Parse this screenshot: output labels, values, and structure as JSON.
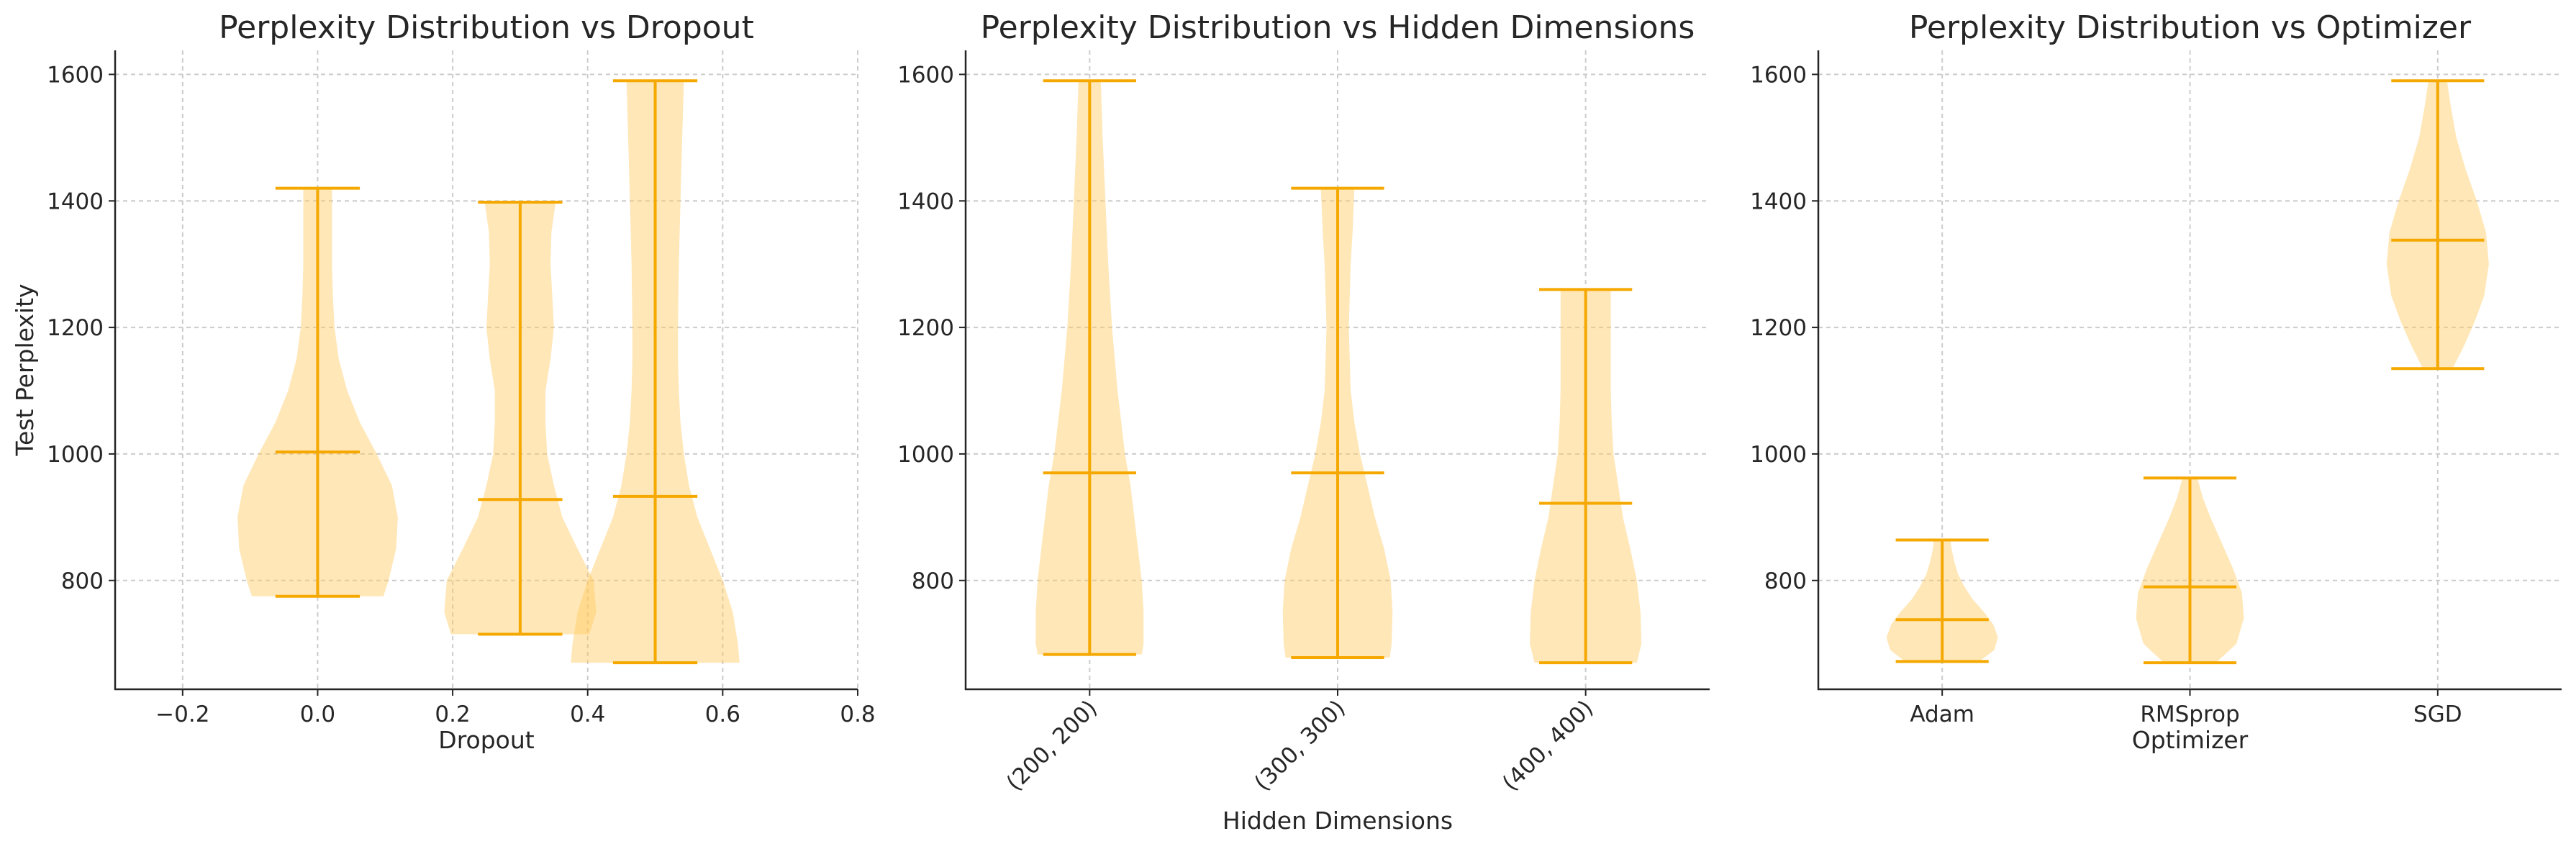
{
  "colors": {
    "body": "#FFD27A",
    "lines": "#F5A800",
    "grid": "#cccccc",
    "text": "#262626"
  },
  "chart_data": [
    {
      "type": "violin",
      "title": "Perplexity Distribution vs Dropout",
      "xlabel": "Dropout",
      "ylabel": "Test Perplexity",
      "x_axis": "numeric",
      "xlim": [
        -0.3,
        0.8
      ],
      "xticks": [
        -0.2,
        0.0,
        0.2,
        0.4,
        0.6,
        0.8
      ],
      "xtick_labels": [
        "−0.2",
        "0.0",
        "0.2",
        "0.4",
        "0.6",
        "0.8"
      ],
      "ylim": [
        628,
        1638
      ],
      "yticks": [
        800,
        1000,
        1200,
        1400,
        1600
      ],
      "grid": true,
      "violins": [
        {
          "position": 0.0,
          "width": 0.25,
          "min": 775,
          "max": 1420,
          "median": 1003,
          "profile": [
            [
              775,
              0.78
            ],
            [
              800,
              0.84
            ],
            [
              850,
              0.93
            ],
            [
              900,
              0.95
            ],
            [
              950,
              0.88
            ],
            [
              1000,
              0.7
            ],
            [
              1050,
              0.5
            ],
            [
              1100,
              0.35
            ],
            [
              1150,
              0.25
            ],
            [
              1200,
              0.2
            ],
            [
              1250,
              0.18
            ],
            [
              1300,
              0.17
            ],
            [
              1350,
              0.17
            ],
            [
              1400,
              0.17
            ],
            [
              1420,
              0.17
            ]
          ]
        },
        {
          "position": 0.3,
          "width": 0.25,
          "min": 715,
          "max": 1398,
          "median": 928,
          "profile": [
            [
              715,
              0.82
            ],
            [
              750,
              0.9
            ],
            [
              800,
              0.87
            ],
            [
              850,
              0.68
            ],
            [
              900,
              0.5
            ],
            [
              950,
              0.4
            ],
            [
              1000,
              0.32
            ],
            [
              1050,
              0.3
            ],
            [
              1100,
              0.3
            ],
            [
              1150,
              0.36
            ],
            [
              1200,
              0.4
            ],
            [
              1250,
              0.38
            ],
            [
              1300,
              0.36
            ],
            [
              1350,
              0.37
            ],
            [
              1398,
              0.42
            ]
          ]
        },
        {
          "position": 0.5,
          "width": 0.25,
          "min": 670,
          "max": 1590,
          "median": 933,
          "profile": [
            [
              670,
              1.0
            ],
            [
              700,
              0.98
            ],
            [
              750,
              0.92
            ],
            [
              800,
              0.8
            ],
            [
              850,
              0.65
            ],
            [
              900,
              0.5
            ],
            [
              950,
              0.4
            ],
            [
              1000,
              0.34
            ],
            [
              1050,
              0.3
            ],
            [
              1100,
              0.28
            ],
            [
              1150,
              0.27
            ],
            [
              1200,
              0.27
            ],
            [
              1300,
              0.28
            ],
            [
              1400,
              0.3
            ],
            [
              1500,
              0.32
            ],
            [
              1590,
              0.34
            ]
          ]
        }
      ]
    },
    {
      "type": "violin",
      "title": "Perplexity Distribution vs Hidden Dimensions",
      "xlabel": "Hidden Dimensions",
      "ylabel": "",
      "x_axis": "categorical",
      "categories": [
        "(200, 200)",
        "(300, 300)",
        "(400, 400)"
      ],
      "xtick_rotation": 45,
      "ylim": [
        628,
        1638
      ],
      "yticks": [
        800,
        1000,
        1200,
        1400,
        1600
      ],
      "grid": true,
      "violins": [
        {
          "category": "(200, 200)",
          "min": 683,
          "max": 1590,
          "median": 970,
          "profile": [
            [
              683,
              0.56
            ],
            [
              700,
              0.58
            ],
            [
              750,
              0.58
            ],
            [
              800,
              0.56
            ],
            [
              850,
              0.52
            ],
            [
              900,
              0.48
            ],
            [
              950,
              0.44
            ],
            [
              1000,
              0.38
            ],
            [
              1100,
              0.3
            ],
            [
              1200,
              0.24
            ],
            [
              1300,
              0.2
            ],
            [
              1400,
              0.17
            ],
            [
              1500,
              0.14
            ],
            [
              1590,
              0.12
            ]
          ]
        },
        {
          "category": "(300, 300)",
          "min": 678,
          "max": 1420,
          "median": 970,
          "profile": [
            [
              678,
              0.56
            ],
            [
              700,
              0.58
            ],
            [
              750,
              0.59
            ],
            [
              800,
              0.57
            ],
            [
              850,
              0.5
            ],
            [
              900,
              0.4
            ],
            [
              950,
              0.32
            ],
            [
              1000,
              0.24
            ],
            [
              1050,
              0.18
            ],
            [
              1100,
              0.14
            ],
            [
              1200,
              0.12
            ],
            [
              1300,
              0.14
            ],
            [
              1350,
              0.16
            ],
            [
              1420,
              0.18
            ]
          ]
        },
        {
          "category": "(400, 400)",
          "min": 670,
          "max": 1260,
          "median": 922,
          "profile": [
            [
              670,
              0.55
            ],
            [
              700,
              0.6
            ],
            [
              750,
              0.59
            ],
            [
              800,
              0.55
            ],
            [
              850,
              0.48
            ],
            [
              900,
              0.4
            ],
            [
              950,
              0.35
            ],
            [
              1000,
              0.3
            ],
            [
              1050,
              0.28
            ],
            [
              1100,
              0.27
            ],
            [
              1150,
              0.27
            ],
            [
              1200,
              0.27
            ],
            [
              1260,
              0.27
            ]
          ]
        }
      ]
    },
    {
      "type": "violin",
      "title": "Perplexity Distribution vs Optimizer",
      "xlabel": "Optimizer",
      "ylabel": "",
      "x_axis": "categorical",
      "categories": [
        "Adam",
        "RMSprop",
        "SGD"
      ],
      "xtick_rotation": 0,
      "ylim": [
        628,
        1638
      ],
      "yticks": [
        800,
        1000,
        1200,
        1400,
        1600
      ],
      "grid": true,
      "violins": [
        {
          "category": "Adam",
          "min": 672,
          "max": 864,
          "median": 738,
          "profile": [
            [
              672,
              0.4
            ],
            [
              690,
              0.56
            ],
            [
              710,
              0.6
            ],
            [
              730,
              0.55
            ],
            [
              750,
              0.45
            ],
            [
              770,
              0.33
            ],
            [
              790,
              0.24
            ],
            [
              810,
              0.17
            ],
            [
              830,
              0.13
            ],
            [
              850,
              0.1
            ],
            [
              864,
              0.09
            ]
          ]
        },
        {
          "category": "RMSprop",
          "min": 670,
          "max": 962,
          "median": 790,
          "profile": [
            [
              670,
              0.28
            ],
            [
              700,
              0.5
            ],
            [
              740,
              0.58
            ],
            [
              780,
              0.56
            ],
            [
              820,
              0.46
            ],
            [
              860,
              0.34
            ],
            [
              900,
              0.22
            ],
            [
              930,
              0.14
            ],
            [
              962,
              0.08
            ]
          ]
        },
        {
          "category": "SGD",
          "min": 1135,
          "max": 1590,
          "median": 1338,
          "profile": [
            [
              1135,
              0.16
            ],
            [
              1170,
              0.28
            ],
            [
              1210,
              0.4
            ],
            [
              1250,
              0.5
            ],
            [
              1300,
              0.55
            ],
            [
              1350,
              0.52
            ],
            [
              1400,
              0.42
            ],
            [
              1450,
              0.3
            ],
            [
              1500,
              0.2
            ],
            [
              1550,
              0.14
            ],
            [
              1590,
              0.1
            ]
          ]
        }
      ]
    }
  ]
}
